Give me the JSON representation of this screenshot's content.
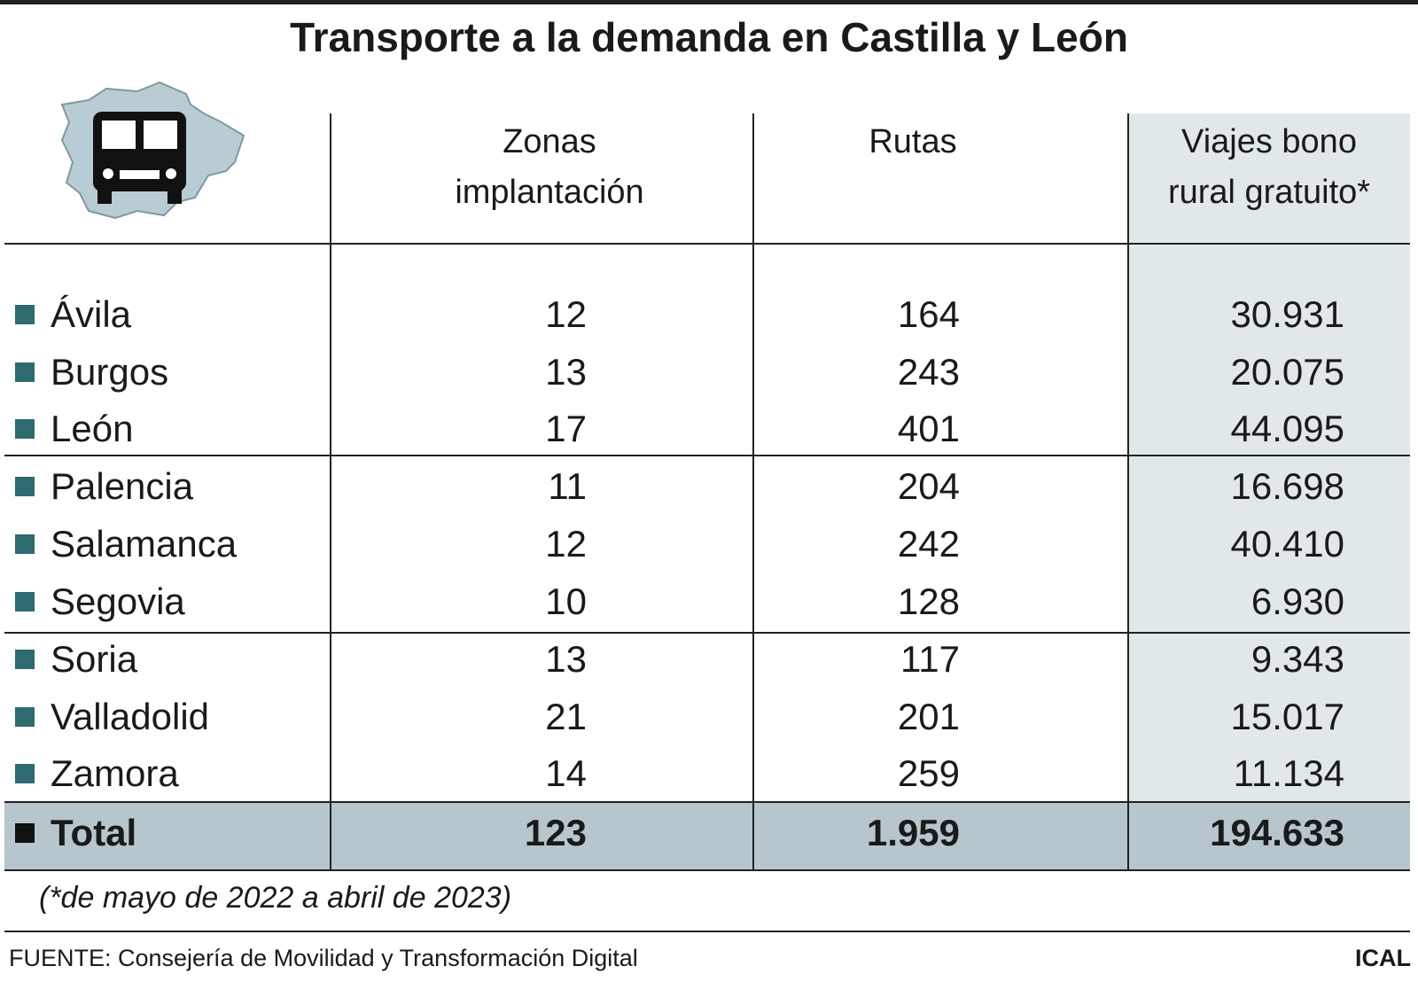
{
  "title": "Transporte a la demanda en Castilla y León",
  "table": {
    "columns": [
      [
        "Zonas",
        "implantación"
      ],
      [
        "Rutas"
      ],
      [
        "Viajes bono",
        "rural gratuito*"
      ]
    ],
    "rows": [
      [
        "Ávila",
        "12",
        "164",
        "30.931"
      ],
      [
        "Burgos",
        "13",
        "243",
        "20.075"
      ],
      [
        "León",
        "17",
        "401",
        "44.095"
      ],
      [
        "Palencia",
        "11",
        "204",
        "16.698"
      ],
      [
        "Salamanca",
        "12",
        "242",
        "40.410"
      ],
      [
        "Segovia",
        "10",
        "128",
        "6.930"
      ],
      [
        "Soria",
        "13",
        "117",
        "9.343"
      ],
      [
        "Valladolid",
        "21",
        "201",
        "15.017"
      ],
      [
        "Zamora",
        "14",
        "259",
        "11.134"
      ]
    ],
    "total": [
      "Total",
      "123",
      "1.959",
      "194.633"
    ]
  },
  "note": "(*de mayo de 2022 a abril de 2023)",
  "source": "FUENTE: Consejería de Movilidad y Transformación Digital",
  "brand": "ICAL"
}
